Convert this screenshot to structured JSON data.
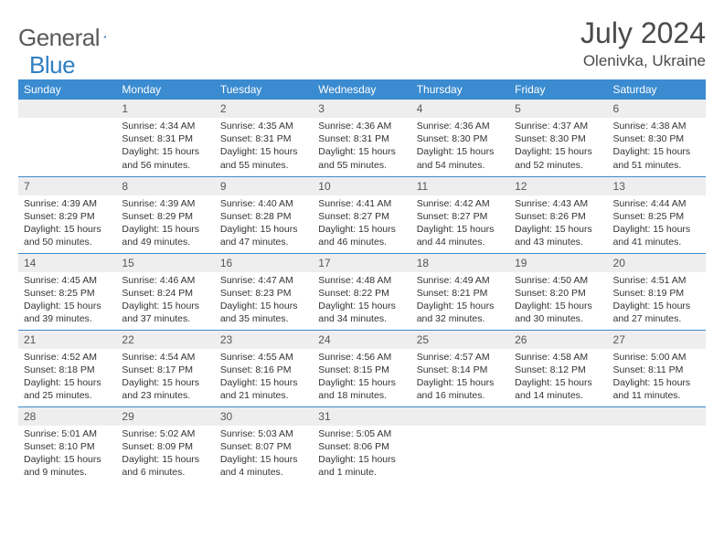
{
  "brand": {
    "word1": "General",
    "word2": "Blue"
  },
  "title": "July 2024",
  "location": "Olenivka, Ukraine",
  "colors": {
    "headerBg": "#3a8bd0",
    "divider": "#3a8bd0",
    "dayBg": "#eeeeee"
  },
  "columns": [
    "Sunday",
    "Monday",
    "Tuesday",
    "Wednesday",
    "Thursday",
    "Friday",
    "Saturday"
  ],
  "startOffset": 1,
  "days": [
    {
      "n": "1",
      "sunrise": "4:34 AM",
      "sunset": "8:31 PM",
      "daylight": "15 hours and 56 minutes."
    },
    {
      "n": "2",
      "sunrise": "4:35 AM",
      "sunset": "8:31 PM",
      "daylight": "15 hours and 55 minutes."
    },
    {
      "n": "3",
      "sunrise": "4:36 AM",
      "sunset": "8:31 PM",
      "daylight": "15 hours and 55 minutes."
    },
    {
      "n": "4",
      "sunrise": "4:36 AM",
      "sunset": "8:30 PM",
      "daylight": "15 hours and 54 minutes."
    },
    {
      "n": "5",
      "sunrise": "4:37 AM",
      "sunset": "8:30 PM",
      "daylight": "15 hours and 52 minutes."
    },
    {
      "n": "6",
      "sunrise": "4:38 AM",
      "sunset": "8:30 PM",
      "daylight": "15 hours and 51 minutes."
    },
    {
      "n": "7",
      "sunrise": "4:39 AM",
      "sunset": "8:29 PM",
      "daylight": "15 hours and 50 minutes."
    },
    {
      "n": "8",
      "sunrise": "4:39 AM",
      "sunset": "8:29 PM",
      "daylight": "15 hours and 49 minutes."
    },
    {
      "n": "9",
      "sunrise": "4:40 AM",
      "sunset": "8:28 PM",
      "daylight": "15 hours and 47 minutes."
    },
    {
      "n": "10",
      "sunrise": "4:41 AM",
      "sunset": "8:27 PM",
      "daylight": "15 hours and 46 minutes."
    },
    {
      "n": "11",
      "sunrise": "4:42 AM",
      "sunset": "8:27 PM",
      "daylight": "15 hours and 44 minutes."
    },
    {
      "n": "12",
      "sunrise": "4:43 AM",
      "sunset": "8:26 PM",
      "daylight": "15 hours and 43 minutes."
    },
    {
      "n": "13",
      "sunrise": "4:44 AM",
      "sunset": "8:25 PM",
      "daylight": "15 hours and 41 minutes."
    },
    {
      "n": "14",
      "sunrise": "4:45 AM",
      "sunset": "8:25 PM",
      "daylight": "15 hours and 39 minutes."
    },
    {
      "n": "15",
      "sunrise": "4:46 AM",
      "sunset": "8:24 PM",
      "daylight": "15 hours and 37 minutes."
    },
    {
      "n": "16",
      "sunrise": "4:47 AM",
      "sunset": "8:23 PM",
      "daylight": "15 hours and 35 minutes."
    },
    {
      "n": "17",
      "sunrise": "4:48 AM",
      "sunset": "8:22 PM",
      "daylight": "15 hours and 34 minutes."
    },
    {
      "n": "18",
      "sunrise": "4:49 AM",
      "sunset": "8:21 PM",
      "daylight": "15 hours and 32 minutes."
    },
    {
      "n": "19",
      "sunrise": "4:50 AM",
      "sunset": "8:20 PM",
      "daylight": "15 hours and 30 minutes."
    },
    {
      "n": "20",
      "sunrise": "4:51 AM",
      "sunset": "8:19 PM",
      "daylight": "15 hours and 27 minutes."
    },
    {
      "n": "21",
      "sunrise": "4:52 AM",
      "sunset": "8:18 PM",
      "daylight": "15 hours and 25 minutes."
    },
    {
      "n": "22",
      "sunrise": "4:54 AM",
      "sunset": "8:17 PM",
      "daylight": "15 hours and 23 minutes."
    },
    {
      "n": "23",
      "sunrise": "4:55 AM",
      "sunset": "8:16 PM",
      "daylight": "15 hours and 21 minutes."
    },
    {
      "n": "24",
      "sunrise": "4:56 AM",
      "sunset": "8:15 PM",
      "daylight": "15 hours and 18 minutes."
    },
    {
      "n": "25",
      "sunrise": "4:57 AM",
      "sunset": "8:14 PM",
      "daylight": "15 hours and 16 minutes."
    },
    {
      "n": "26",
      "sunrise": "4:58 AM",
      "sunset": "8:12 PM",
      "daylight": "15 hours and 14 minutes."
    },
    {
      "n": "27",
      "sunrise": "5:00 AM",
      "sunset": "8:11 PM",
      "daylight": "15 hours and 11 minutes."
    },
    {
      "n": "28",
      "sunrise": "5:01 AM",
      "sunset": "8:10 PM",
      "daylight": "15 hours and 9 minutes."
    },
    {
      "n": "29",
      "sunrise": "5:02 AM",
      "sunset": "8:09 PM",
      "daylight": "15 hours and 6 minutes."
    },
    {
      "n": "30",
      "sunrise": "5:03 AM",
      "sunset": "8:07 PM",
      "daylight": "15 hours and 4 minutes."
    },
    {
      "n": "31",
      "sunrise": "5:05 AM",
      "sunset": "8:06 PM",
      "daylight": "15 hours and 1 minute."
    }
  ],
  "labels": {
    "sunrise": "Sunrise: ",
    "sunset": "Sunset: ",
    "daylight": "Daylight: "
  }
}
